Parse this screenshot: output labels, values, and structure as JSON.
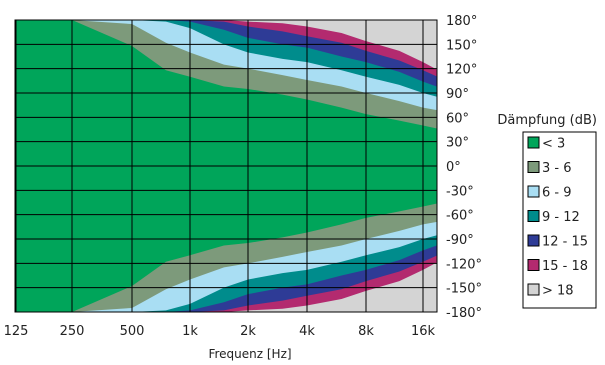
{
  "chart_data": {
    "type": "heatmap",
    "title": "",
    "xlabel": "Frequenz [Hz]",
    "ylabel": "",
    "x_ticks": [
      "125",
      "250",
      "500",
      "1k",
      "2k",
      "4k",
      "8k",
      "16k"
    ],
    "y_ticks": [
      "180°",
      "150°",
      "120°",
      "90°",
      "60°",
      "30°",
      "0°",
      "-30°",
      "-60°",
      "-90°",
      "-120°",
      "-150°",
      "-180°"
    ],
    "ylim": [
      -180,
      180
    ],
    "legend_title": "Dämpfung (dB)",
    "legend_position": "right",
    "legend": [
      {
        "label": "< 3",
        "color": "#00a55a"
      },
      {
        "label": "3 - 6",
        "color": "#7d9a7b"
      },
      {
        "label": "6 - 9",
        "color": "#a9def3"
      },
      {
        "label": "9 - 12",
        "color": "#008c8c"
      },
      {
        "label": "12 - 15",
        "color": "#2e3b96"
      },
      {
        "label": "15 - 18",
        "color": "#b32a6f"
      },
      {
        "label": "> 18",
        "color": "#d4d4d4"
      }
    ],
    "grid": true,
    "level_boundaries_deg": {
      "x": [
        "125",
        "250",
        "500",
        "750",
        "1k",
        "1.5k",
        "2k",
        "3k",
        "4k",
        "6k",
        "8k",
        "12k",
        "16k",
        "20k"
      ],
      "gt3": [
        180,
        180,
        148,
        118,
        110,
        98,
        95,
        88,
        82,
        72,
        64,
        56,
        50,
        45
      ],
      "gt6": [
        180,
        180,
        175,
        152,
        140,
        125,
        120,
        112,
        106,
        98,
        90,
        80,
        72,
        68
      ],
      "gt9": [
        180,
        180,
        180,
        178,
        170,
        150,
        140,
        132,
        128,
        118,
        110,
        100,
        90,
        84
      ],
      "gt12": [
        180,
        180,
        180,
        180,
        178,
        168,
        158,
        150,
        146,
        135,
        128,
        116,
        104,
        96
      ],
      "gt15": [
        180,
        180,
        180,
        180,
        180,
        178,
        172,
        166,
        160,
        152,
        142,
        130,
        118,
        108
      ],
      "gt18": [
        180,
        180,
        180,
        180,
        180,
        180,
        178,
        176,
        172,
        164,
        154,
        142,
        128,
        116
      ]
    }
  }
}
